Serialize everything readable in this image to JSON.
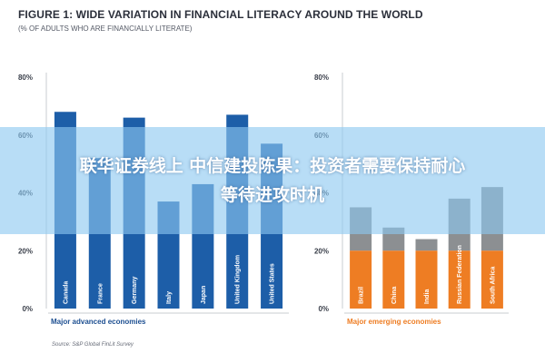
{
  "figure": {
    "title": "FIGURE 1: WIDE VARIATION IN FINANCIAL LITERACY AROUND THE WORLD",
    "subtitle": "(% OF ADULTS WHO ARE FINANCIALLY LITERATE)",
    "source": "Source: S&P Global FinLit Survey"
  },
  "overlay": {
    "line1": "联华证券线上 中信建投陈果：投资者需要保持耐心",
    "line2": "等待进攻时机"
  },
  "chart_data": [
    {
      "type": "bar",
      "title": "Major advanced economies",
      "categories": [
        "Canada",
        "France",
        "Germany",
        "Italy",
        "Japan",
        "United Kingdom",
        "United States"
      ],
      "values": [
        68,
        52,
        66,
        37,
        43,
        67,
        57
      ],
      "ylim": [
        0,
        80
      ],
      "yticks": [
        "0%",
        "20%",
        "40%",
        "60%",
        "80%"
      ],
      "color": "#1d5ea8",
      "grid": false
    },
    {
      "type": "bar",
      "title": "Major emerging economies",
      "categories": [
        "Brazil",
        "China",
        "India",
        "Russian Federation",
        "South Africa"
      ],
      "values": [
        35,
        28,
        24,
        38,
        42
      ],
      "ylim": [
        0,
        80
      ],
      "yticks": [
        "0%",
        "20%",
        "40%",
        "60%",
        "80%"
      ],
      "color": "#ee7d23",
      "upper_color": "#8c8f92",
      "grid": false
    }
  ]
}
